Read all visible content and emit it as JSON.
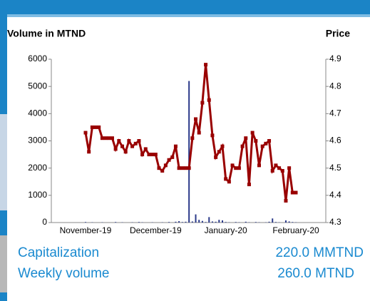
{
  "chart_data": {
    "type": "bar_line",
    "ylabel": "Volume in MTND",
    "y2label": "Price",
    "categories": [
      "November-19",
      null,
      null,
      null,
      null,
      null,
      null,
      null,
      null,
      null,
      null,
      null,
      null,
      null,
      null,
      null,
      null,
      null,
      null,
      null,
      null,
      "December-19",
      null,
      null,
      null,
      null,
      null,
      null,
      null,
      null,
      null,
      null,
      null,
      null,
      null,
      null,
      null,
      null,
      null,
      null,
      null,
      null,
      "January-20",
      null,
      null,
      null,
      null,
      null,
      null,
      null,
      null,
      null,
      null,
      null,
      null,
      null,
      null,
      null,
      null,
      null,
      null,
      null,
      null,
      "February-20"
    ],
    "series": [
      {
        "type": "bar",
        "color": "#2b3a8a",
        "axis": "y",
        "values": [
          20,
          0,
          10,
          0,
          0,
          10,
          0,
          0,
          0,
          20,
          0,
          10,
          0,
          0,
          10,
          0,
          20,
          10,
          0,
          0,
          10,
          0,
          0,
          10,
          0,
          20,
          0,
          30,
          50,
          20,
          30,
          5200,
          40,
          300,
          100,
          60,
          20,
          200,
          40,
          30,
          100,
          80,
          20,
          10,
          0,
          20,
          10,
          0,
          30,
          10,
          0,
          20,
          10,
          0,
          10,
          30,
          150,
          20,
          10,
          0,
          80,
          40,
          20,
          10
        ]
      },
      {
        "type": "line",
        "color": "#990000",
        "axis": "y2",
        "values": [
          4.63,
          4.56,
          4.65,
          4.65,
          4.65,
          4.61,
          4.61,
          4.61,
          4.61,
          4.57,
          4.6,
          4.58,
          4.56,
          4.6,
          4.58,
          4.59,
          4.6,
          4.55,
          4.57,
          4.55,
          4.55,
          4.55,
          4.5,
          4.49,
          4.51,
          4.53,
          4.54,
          4.58,
          4.5,
          4.5,
          4.5,
          4.5,
          4.61,
          4.68,
          4.63,
          4.74,
          4.88,
          4.75,
          4.62,
          4.54,
          4.56,
          4.58,
          4.46,
          4.45,
          4.51,
          4.5,
          4.5,
          4.58,
          4.61,
          4.44,
          4.63,
          4.6,
          4.51,
          4.58,
          4.59,
          4.6,
          4.49,
          4.51,
          4.5,
          4.49,
          4.38,
          4.5,
          4.41,
          4.41
        ]
      }
    ],
    "ylim": [
      0,
      6000
    ],
    "yticks": [
      0,
      1000,
      2000,
      3000,
      4000,
      5000,
      6000
    ],
    "y2lim": [
      4.3,
      4.9
    ],
    "y2ticks": [
      4.3,
      4.4,
      4.5,
      4.6,
      4.7,
      4.8,
      4.9
    ]
  },
  "stats": [
    {
      "label": "Capitalization",
      "value": "220.0 MMTND"
    },
    {
      "label": "Weekly volume",
      "value": "260.0 MTND"
    }
  ]
}
